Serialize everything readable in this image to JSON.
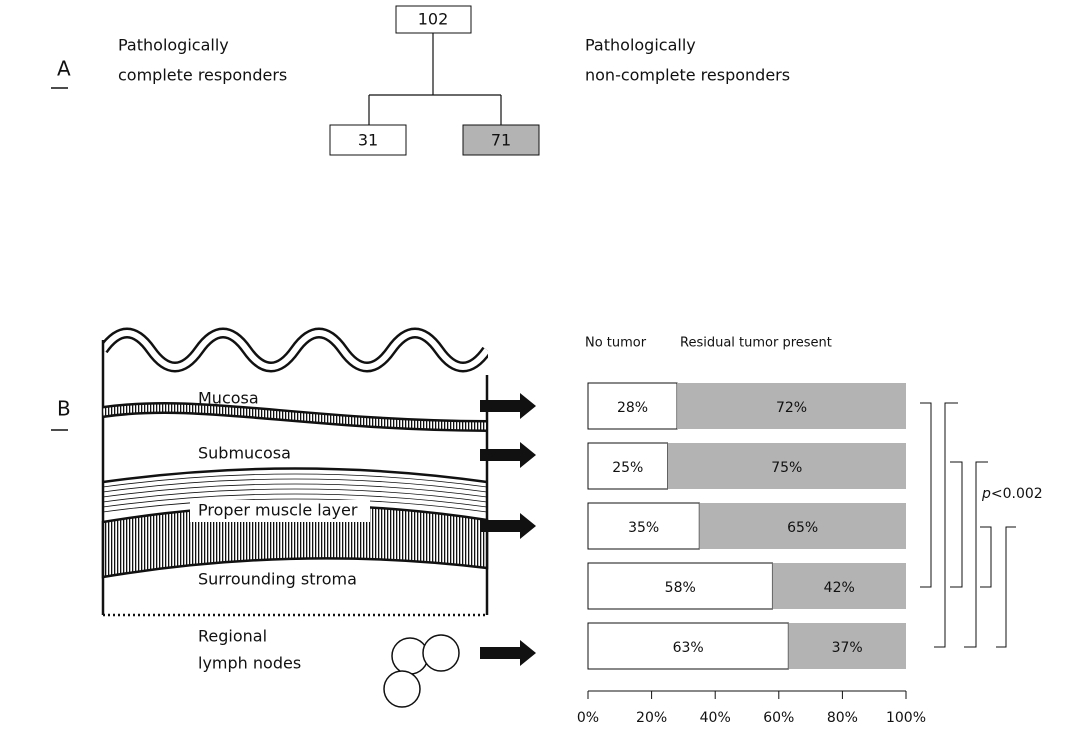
{
  "panel_a": {
    "label": "A",
    "left_text": [
      "Pathologically",
      "complete responders"
    ],
    "right_text": [
      "Pathologically",
      "non-complete responders"
    ],
    "root": "102",
    "left_node": "31",
    "right_node": "71"
  },
  "panel_b": {
    "label": "B",
    "layers": [
      "Mucosa",
      "Submucosa",
      "Proper muscle layer",
      "Surrounding stroma"
    ],
    "lymph": [
      "Regional",
      "lymph nodes"
    ],
    "annotation": [
      "p",
      "<0.002"
    ]
  },
  "chart_data": {
    "type": "bar",
    "stacked": true,
    "orientation": "horizontal",
    "series": [
      {
        "name": "No tumor",
        "color": "#ffffff",
        "values": [
          28,
          25,
          35,
          58,
          63
        ],
        "value_labels": [
          "28%",
          "25%",
          "35%",
          "58%",
          "63%"
        ]
      },
      {
        "name": "Residual tumor present",
        "color": "#b3b3b3",
        "values": [
          72,
          75,
          65,
          42,
          37
        ],
        "value_labels": [
          "72%",
          "75%",
          "65%",
          "42%",
          "37%"
        ]
      }
    ],
    "xlim": [
      0,
      100
    ],
    "xticks": [
      {
        "value": 0,
        "label": "0%"
      },
      {
        "value": 20,
        "label": "20%"
      },
      {
        "value": 40,
        "label": "40%"
      },
      {
        "value": 60,
        "label": "60%"
      },
      {
        "value": 80,
        "label": "80%"
      },
      {
        "value": 100,
        "label": "100%"
      }
    ]
  }
}
